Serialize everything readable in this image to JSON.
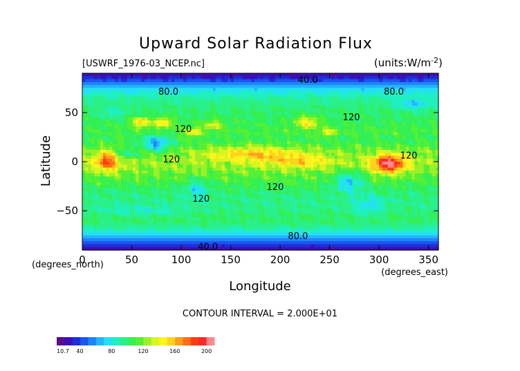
{
  "chart_data": {
    "type": "heatmap",
    "title": "Upward Solar Radiation Flux",
    "file_label": "[USWRF_1976-03_NCEP.nc]",
    "units_label": "(units:W/m^2)",
    "xlabel": "Longitude",
    "ylabel": "Latitude",
    "x_unit_label": "(degrees_east)",
    "y_unit_label": "(degrees_north)",
    "xlim": [
      0,
      360
    ],
    "ylim": [
      -90,
      90
    ],
    "x_ticks": [
      0,
      50,
      100,
      150,
      200,
      250,
      300,
      350
    ],
    "y_ticks": [
      -50,
      0,
      50
    ],
    "contour_interval_text": "CONTOUR INTERVAL = 2.000E+01",
    "contour_labels": [
      {
        "text": "40.0",
        "lon": 228,
        "lat": 83
      },
      {
        "text": "80.0",
        "lon": 87,
        "lat": 71
      },
      {
        "text": "80.0",
        "lon": 315,
        "lat": 71
      },
      {
        "text": "120",
        "lon": 272,
        "lat": 45
      },
      {
        "text": "120",
        "lon": 102,
        "lat": 33
      },
      {
        "text": "120",
        "lon": 90,
        "lat": 2
      },
      {
        "text": "120",
        "lon": 330,
        "lat": 6
      },
      {
        "text": "120",
        "lon": 195,
        "lat": -26
      },
      {
        "text": "120",
        "lon": 120,
        "lat": -38
      },
      {
        "text": "80.0",
        "lon": 218,
        "lat": -76
      },
      {
        "text": "40.0",
        "lon": 127,
        "lat": -87
      }
    ],
    "colorbar": {
      "min": 10.7,
      "max": 210,
      "tick_labels": [
        "10.7",
        "40",
        "80",
        "120",
        "160",
        "200"
      ],
      "tick_values": [
        10.7,
        40,
        80,
        120,
        160,
        200
      ]
    },
    "zonal_profile": [
      {
        "lat": 90,
        "value": 18
      },
      {
        "lat": 84,
        "value": 35
      },
      {
        "lat": 78,
        "value": 60
      },
      {
        "lat": 72,
        "value": 78
      },
      {
        "lat": 66,
        "value": 90
      },
      {
        "lat": 60,
        "value": 95
      },
      {
        "lat": 54,
        "value": 100
      },
      {
        "lat": 48,
        "value": 102
      },
      {
        "lat": 42,
        "value": 104
      },
      {
        "lat": 36,
        "value": 108
      },
      {
        "lat": 30,
        "value": 110
      },
      {
        "lat": 24,
        "value": 106
      },
      {
        "lat": 18,
        "value": 110
      },
      {
        "lat": 12,
        "value": 118
      },
      {
        "lat": 6,
        "value": 122
      },
      {
        "lat": 0,
        "value": 126
      },
      {
        "lat": -6,
        "value": 124
      },
      {
        "lat": -12,
        "value": 118
      },
      {
        "lat": -18,
        "value": 112
      },
      {
        "lat": -24,
        "value": 106
      },
      {
        "lat": -30,
        "value": 100
      },
      {
        "lat": -36,
        "value": 97
      },
      {
        "lat": -42,
        "value": 95
      },
      {
        "lat": -48,
        "value": 96
      },
      {
        "lat": -54,
        "value": 100
      },
      {
        "lat": -60,
        "value": 102
      },
      {
        "lat": -66,
        "value": 95
      },
      {
        "lat": -72,
        "value": 80
      },
      {
        "lat": -78,
        "value": 62
      },
      {
        "lat": -84,
        "value": 38
      },
      {
        "lat": -90,
        "value": 18
      }
    ],
    "anomalies": [
      {
        "lon": 25,
        "lat": 0,
        "rlon": 12,
        "rlat": 10,
        "amp": 58
      },
      {
        "lon": 60,
        "lat": 40,
        "rlon": 9,
        "rlat": 5,
        "amp": 50
      },
      {
        "lon": 82,
        "lat": 40,
        "rlon": 8,
        "rlat": 5,
        "amp": 48
      },
      {
        "lon": 112,
        "lat": 30,
        "rlon": 8,
        "rlat": 5,
        "amp": 38
      },
      {
        "lon": 132,
        "lat": 37,
        "rlon": 10,
        "rlat": 5,
        "amp": 28
      },
      {
        "lon": 75,
        "lat": 18,
        "rlon": 14,
        "rlat": 8,
        "amp": -48
      },
      {
        "lon": 45,
        "lat": 8,
        "rlon": 10,
        "rlat": 6,
        "amp": -30
      },
      {
        "lon": 30,
        "lat": 50,
        "rlon": 12,
        "rlat": 6,
        "amp": -18
      },
      {
        "lon": 175,
        "lat": 8,
        "rlon": 45,
        "rlat": 7,
        "amp": 38
      },
      {
        "lon": 220,
        "lat": 0,
        "rlon": 30,
        "rlat": 6,
        "amp": 28
      },
      {
        "lon": 310,
        "lat": -2,
        "rlon": 16,
        "rlat": 9,
        "amp": 85
      },
      {
        "lon": 228,
        "lat": 40,
        "rlon": 12,
        "rlat": 6,
        "amp": 42
      },
      {
        "lon": 248,
        "lat": 30,
        "rlon": 8,
        "rlat": 4,
        "amp": 34
      },
      {
        "lon": 270,
        "lat": -20,
        "rlon": 15,
        "rlat": 10,
        "amp": -38
      },
      {
        "lon": 290,
        "lat": -45,
        "rlon": 15,
        "rlat": 10,
        "amp": -20
      },
      {
        "lon": 115,
        "lat": -28,
        "rlon": 12,
        "rlat": 10,
        "amp": -24
      },
      {
        "lon": 60,
        "lat": -50,
        "rlon": 40,
        "rlat": 5,
        "amp": -14
      },
      {
        "lon": 335,
        "lat": 58,
        "rlon": 18,
        "rlat": 6,
        "amp": -25
      }
    ]
  }
}
